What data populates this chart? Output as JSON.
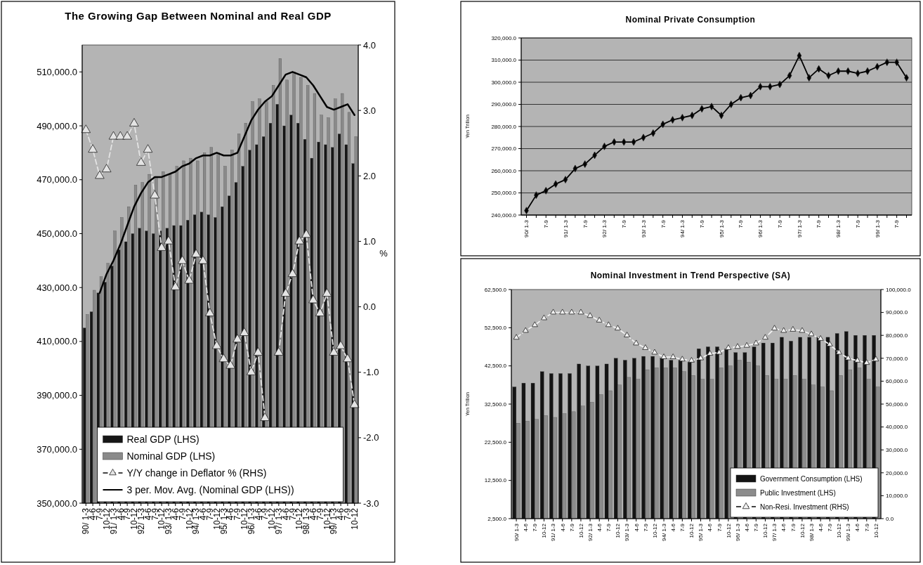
{
  "chart_data": [
    {
      "type": "bar",
      "title": "The Growing Gap Between Nominal and Real GDP",
      "categories": [
        "90/ 1-3",
        "4-6",
        "7-9",
        "10-12",
        "91/ 1-3",
        "4-6",
        "7-9",
        "10-12",
        "92/ 1-3",
        "4-6",
        "7-9",
        "10-12",
        "93/ 1-3",
        "4-6",
        "7-9",
        "10-12",
        "94/ 1-3",
        "4-6",
        "7-9",
        "10-12",
        "95/ 1-3",
        "4-6",
        "7-9",
        "10-12",
        "96/ 1-3",
        "4-6",
        "7-9",
        "10-12",
        "97/ 1-3",
        "4-6",
        "7-9",
        "10-12",
        "98/ 1-3",
        "4-6",
        "7-9",
        "10-12",
        "99/ 1-3",
        "4-6",
        "7-9",
        "10-12"
      ],
      "series": [
        {
          "name": "Real GDP (LHS)",
          "color": "#161616",
          "values": [
            415000,
            421000,
            428000,
            432000,
            438000,
            444000,
            447000,
            450000,
            452000,
            451000,
            450000,
            451000,
            452000,
            453000,
            453000,
            455000,
            457000,
            458000,
            457000,
            456000,
            460000,
            464000,
            469000,
            475000,
            481000,
            483000,
            486000,
            491000,
            498000,
            490000,
            494000,
            491000,
            485000,
            478000,
            484000,
            483000,
            482000,
            487000,
            483000,
            476000
          ]
        },
        {
          "name": "Nominal GDP (LHS)",
          "color": "#8a8a8a",
          "values": [
            420000,
            429000,
            434000,
            439000,
            451000,
            456000,
            460000,
            468000,
            469000,
            472000,
            471000,
            473000,
            472000,
            475000,
            477000,
            478000,
            477000,
            480000,
            482000,
            480000,
            475000,
            481000,
            487000,
            491000,
            499000,
            500000,
            499000,
            505000,
            515000,
            507000,
            510000,
            508000,
            505000,
            502000,
            494000,
            493000,
            500000,
            502000,
            495000,
            486000
          ]
        },
        {
          "name": "Y/Y change in Deflator % (RHS)",
          "type": "line",
          "axis": "y2",
          "color": "#e4e4e4",
          "marker": "triangle",
          "line_style": "dashed",
          "values": [
            2.7,
            2.4,
            2.0,
            2.1,
            2.6,
            2.6,
            2.6,
            2.8,
            2.2,
            2.4,
            1.7,
            0.9,
            1.0,
            0.3,
            0.7,
            0.4,
            0.8,
            0.7,
            -0.1,
            -0.6,
            -0.8,
            -0.9,
            -0.5,
            -0.4,
            -1.0,
            -0.7,
            -1.7,
            null,
            -0.7,
            0.2,
            0.5,
            1.0,
            1.1,
            0.1,
            -0.1,
            0.2,
            -0.7,
            -0.6,
            -0.8,
            -1.5
          ]
        },
        {
          "name": "3 per. Mov. Avg. (Nominal GDP (LHS))",
          "type": "line",
          "color": "#000000",
          "values": [
            null,
            null,
            428000,
            435000,
            440000,
            446000,
            453000,
            460000,
            465000,
            469000,
            471000,
            471000,
            472000,
            473000,
            475000,
            476000,
            478000,
            479000,
            479000,
            480000,
            479000,
            479000,
            480000,
            486000,
            492000,
            496000,
            499000,
            501000,
            505000,
            509000,
            510000,
            509000,
            508000,
            505000,
            501000,
            497000,
            496000,
            497000,
            498000,
            494000
          ]
        }
      ],
      "ylim": [
        350000,
        520000
      ],
      "yticks": [
        {
          "value": 350000,
          "label": "350,000.0"
        },
        {
          "value": 370000,
          "label": "370,000.0"
        },
        {
          "value": 390000,
          "label": "390,000.0"
        },
        {
          "value": 410000,
          "label": "410,000.0"
        },
        {
          "value": 430000,
          "label": "430,000.0"
        },
        {
          "value": 450000,
          "label": "450,000.0"
        },
        {
          "value": 470000,
          "label": "470,000.0"
        },
        {
          "value": 490000,
          "label": "490,000.0"
        },
        {
          "value": 510000,
          "label": "510,000.0"
        }
      ],
      "y2lim": [
        -3,
        4
      ],
      "y2ticks": [
        {
          "value": -3,
          "label": "-3.0"
        },
        {
          "value": -2,
          "label": "-2.0"
        },
        {
          "value": -1,
          "label": "-1.0"
        },
        {
          "value": 0,
          "label": "0.0"
        },
        {
          "value": 1,
          "label": "1.0"
        },
        {
          "value": 2,
          "label": "2.0"
        },
        {
          "value": 3,
          "label": "3.0"
        },
        {
          "value": 4,
          "label": "4.0"
        }
      ],
      "y2label": "%",
      "legend": "bottom"
    },
    {
      "type": "line",
      "title": "Nominal Private Consumption",
      "ylabel": "Yen Trillion",
      "categories": [
        "90/ 1-3",
        null,
        "7-9",
        null,
        "91/ 1-3",
        null,
        "7-9",
        null,
        "92/ 1-3",
        null,
        "7-9",
        null,
        "93/ 1-3",
        null,
        "7-9",
        null,
        "94/ 1-3",
        null,
        "7-9",
        null,
        "95/ 1-3",
        null,
        "7-9",
        null,
        "96/ 1-3",
        null,
        "7-9",
        null,
        "97/ 1-3",
        null,
        "7-9",
        null,
        "98/ 1-3",
        null,
        "7-9",
        null,
        "99/ 1-3",
        null,
        "7-9",
        null
      ],
      "series": [
        {
          "color": "#000000",
          "values": [
            242000,
            249000,
            251000,
            254000,
            256000,
            261000,
            263000,
            267000,
            271000,
            273000,
            273000,
            273000,
            275000,
            277000,
            281000,
            283000,
            284000,
            285000,
            288000,
            289000,
            285000,
            290000,
            293000,
            294000,
            298000,
            298000,
            299000,
            303000,
            312000,
            302000,
            306000,
            303000,
            305000,
            305000,
            304000,
            305000,
            307000,
            309000,
            309000,
            302000
          ]
        }
      ],
      "marker": "diamond",
      "ylim": [
        240000,
        320000
      ],
      "yticks": [
        {
          "value": 240000,
          "label": "240,000.0"
        },
        {
          "value": 250000,
          "label": "250,000.0"
        },
        {
          "value": 260000,
          "label": "260,000.0"
        },
        {
          "value": 270000,
          "label": "270,000.0"
        },
        {
          "value": 280000,
          "label": "280,000.0"
        },
        {
          "value": 290000,
          "label": "290,000.0"
        },
        {
          "value": 300000,
          "label": "300,000.0"
        },
        {
          "value": 310000,
          "label": "310,000.0"
        },
        {
          "value": 320000,
          "label": "320,000.0"
        }
      ],
      "grid": "y"
    },
    {
      "type": "bar",
      "title": "Nominal Investment in Trend Perspective (SA)",
      "ylabel": "Yen Trillion",
      "categories": [
        "90/ 1-3",
        "4-6",
        "7-9",
        "10-12",
        "91/ 1-3",
        "4-6",
        "7-9",
        "10-12",
        "92/ 1-3",
        "4-6",
        "7-9",
        "10-12",
        "93/ 1-3",
        "4-6",
        "7-9",
        "10-12",
        "94/ 1-3",
        "4-6",
        "7-9",
        "10-12",
        "95/ 1-3",
        "4-6",
        "7-9",
        "10-12",
        "96/ 1-3",
        "4-6",
        "7-9",
        "10-12",
        "97/ 1-3",
        "4-6",
        "7-9",
        "10-12",
        "98/ 1-3",
        "4-6",
        "7-9",
        "10-12",
        "99/ 1-3",
        "4-6",
        "7-9",
        "10-12"
      ],
      "series": [
        {
          "name": "Government Consumption (LHS)",
          "color": "#141414",
          "values": [
            37000,
            38000,
            38000,
            41000,
            40500,
            40500,
            40500,
            43000,
            42500,
            42500,
            43000,
            44500,
            44000,
            44500,
            45000,
            45000,
            44500,
            44000,
            44000,
            43500,
            47000,
            47500,
            47500,
            47000,
            46000,
            46000,
            47500,
            48500,
            48500,
            50000,
            49000,
            50000,
            50000,
            50000,
            50000,
            51000,
            51500,
            50500,
            50500,
            50500
          ]
        },
        {
          "name": "Public Investment (LHS)",
          "color": "#8c8c8c",
          "values": [
            27500,
            28000,
            28500,
            29500,
            29000,
            30000,
            30500,
            32000,
            33000,
            35000,
            36000,
            37500,
            39500,
            39000,
            41500,
            42000,
            42000,
            42000,
            41000,
            40000,
            39000,
            39000,
            42000,
            42500,
            44000,
            43500,
            42500,
            40000,
            39000,
            39000,
            40000,
            39000,
            37500,
            37000,
            36000,
            40000,
            41500,
            42000,
            39000,
            37000
          ]
        },
        {
          "name": "Non-Resi. Investment (RHS)",
          "type": "line",
          "axis": "y2",
          "color": "#f2f2f2",
          "marker": "triangle",
          "line_style": "dashed",
          "values": [
            79000,
            82000,
            84500,
            87500,
            90000,
            90000,
            90000,
            90000,
            88500,
            86500,
            84500,
            83000,
            80000,
            76500,
            74500,
            72500,
            70500,
            70500,
            69500,
            69000,
            70000,
            72000,
            72500,
            74500,
            75000,
            75500,
            76500,
            79000,
            83000,
            82000,
            82500,
            82000,
            80500,
            78500,
            76000,
            72500,
            70000,
            69000,
            68000,
            69500
          ]
        }
      ],
      "ylim": [
        2500,
        62500
      ],
      "yticks": [
        {
          "value": 2500,
          "label": "2,500.0"
        },
        {
          "value": 12500,
          "label": "12,500.0"
        },
        {
          "value": 22500,
          "label": "22,500.0"
        },
        {
          "value": 32500,
          "label": "32,500.0"
        },
        {
          "value": 42500,
          "label": "42,500.0"
        },
        {
          "value": 52500,
          "label": "52,500.0"
        },
        {
          "value": 62500,
          "label": "62,500.0"
        }
      ],
      "y2lim": [
        0,
        100000
      ],
      "y2ticks": [
        {
          "value": 0,
          "label": "0.0"
        },
        {
          "value": 10000,
          "label": "10,000.0"
        },
        {
          "value": 20000,
          "label": "20,000.0"
        },
        {
          "value": 30000,
          "label": "30,000.0"
        },
        {
          "value": 40000,
          "label": "40,000.0"
        },
        {
          "value": 50000,
          "label": "50,000.0"
        },
        {
          "value": 60000,
          "label": "60,000.0"
        },
        {
          "value": 70000,
          "label": "70,000.0"
        },
        {
          "value": 80000,
          "label": "80,000.0"
        },
        {
          "value": 90000,
          "label": "90,000.0"
        },
        {
          "value": 100000,
          "label": "100,000.0"
        }
      ],
      "legend": "bottom right"
    }
  ]
}
